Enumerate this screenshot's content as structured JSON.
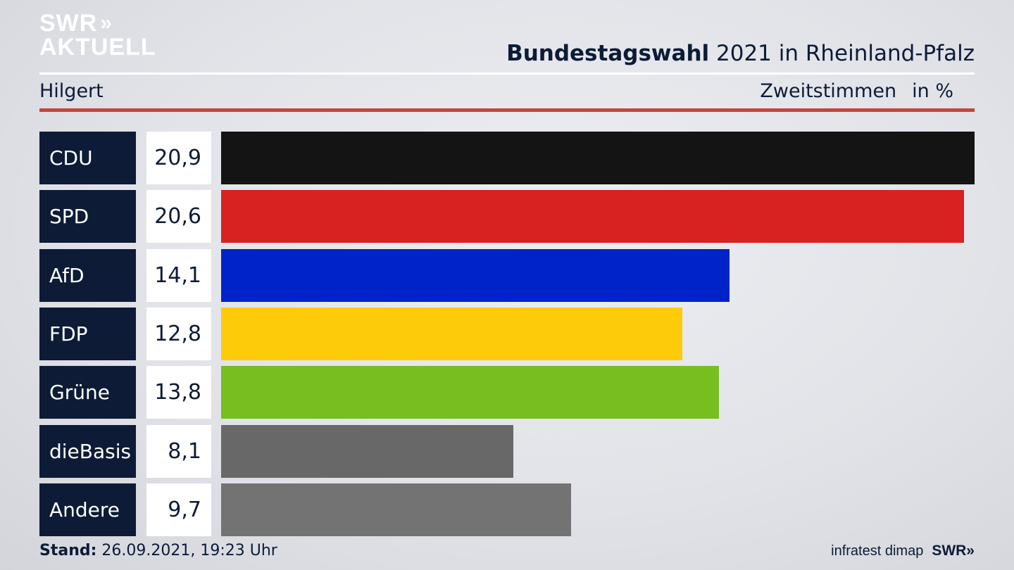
{
  "brand": {
    "line1": "SWR",
    "chevrons": "»",
    "line2": "AKTUELL"
  },
  "header": {
    "title_bold": "Bundestagswahl",
    "title_rest": " 2021 in Rheinland-Pfalz",
    "subtitle": "Hilgert",
    "metric": "Zweitstimmen",
    "unit": "in %"
  },
  "footer": {
    "stand_label": "Stand:",
    "stand_value": " 26.09.2021, 19:23 Uhr",
    "source": "infratest dimap",
    "brand_small": "SWR»"
  },
  "chart_data": {
    "type": "bar",
    "orientation": "horizontal",
    "title": "Bundestagswahl 2021 in Rheinland-Pfalz",
    "subtitle": "Hilgert",
    "unit": "in %",
    "categories": [
      "CDU",
      "SPD",
      "AfD",
      "FDP",
      "Grüne",
      "dieBasis",
      "Andere"
    ],
    "values": [
      20.9,
      20.6,
      14.1,
      12.8,
      13.8,
      8.1,
      9.7
    ],
    "value_labels": [
      "20,9",
      "20,6",
      "14,1",
      "12,8",
      "13,8",
      "8,1",
      "9,7"
    ],
    "colors": [
      "#141414",
      "#d82121",
      "#0023c9",
      "#fecb0b",
      "#78be20",
      "#686868",
      "#737373"
    ],
    "xlim": [
      0,
      20.9
    ]
  }
}
